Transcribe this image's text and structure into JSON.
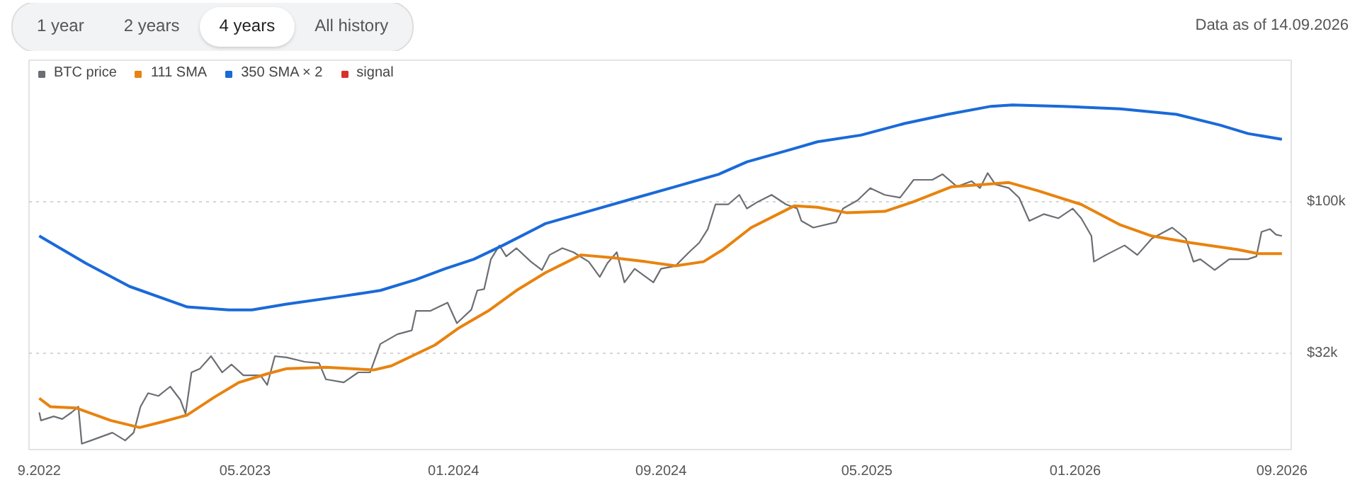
{
  "chart_data": {
    "type": "line",
    "annotations": [
      "1 year",
      "2 years",
      "4 years",
      "All history",
      "Data as of 14.09.2026"
    ],
    "log": true,
    "grid": "y",
    "legend": "top left",
    "marker": "none",
    "line_style": "solid",
    "xlim": [
      "2022-08-20",
      "2026-09-12"
    ],
    "xticks": [
      {
        "value": "2022-09-01",
        "label": "9.2022"
      },
      {
        "value": "2023-05-01",
        "label": "05.2023"
      },
      {
        "value": "2024-01-01",
        "label": "01.2024"
      },
      {
        "value": "2024-09-01",
        "label": "09.2024"
      },
      {
        "value": "2025-05-01",
        "label": "05.2025"
      },
      {
        "value": "2026-01-01",
        "label": "01.2026"
      },
      {
        "value": "2026-09-01",
        "label": "09.2026"
      }
    ],
    "ylim": [
      15500,
      290000
    ],
    "yticks": [
      {
        "value": 32000,
        "label": "$32k"
      },
      {
        "value": 100000,
        "label": "$100k"
      }
    ],
    "series": [
      {
        "name": "BTC price",
        "color": "#6b6e73",
        "x": [
          "2022-09-01",
          "2022-09-03",
          "2022-09-18",
          "2022-09-28",
          "2022-10-09",
          "2022-10-17",
          "2022-10-21",
          "2022-11-01",
          "2022-11-26",
          "2022-12-11",
          "2022-12-21",
          "2022-12-29",
          "2023-01-07",
          "2023-01-19",
          "2023-02-02",
          "2023-02-14",
          "2023-02-20",
          "2023-02-27",
          "2023-03-09",
          "2023-03-22",
          "2023-04-04",
          "2023-04-15",
          "2023-04-29",
          "2023-05-19",
          "2023-05-27",
          "2023-06-05",
          "2023-06-19",
          "2023-07-10",
          "2023-07-27",
          "2023-08-04",
          "2023-08-25",
          "2023-09-11",
          "2023-09-25",
          "2023-10-07",
          "2023-10-27",
          "2023-11-13",
          "2023-11-18",
          "2023-12-05",
          "2023-12-25",
          "2024-01-05",
          "2024-01-22",
          "2024-01-29",
          "2024-02-06",
          "2024-02-14",
          "2024-02-24",
          "2024-03-03",
          "2024-03-15",
          "2024-04-01",
          "2024-04-14",
          "2024-04-23",
          "2024-05-08",
          "2024-05-21",
          "2024-06-08",
          "2024-06-21",
          "2024-06-30",
          "2024-07-11",
          "2024-07-20",
          "2024-08-01",
          "2024-08-23",
          "2024-09-01",
          "2024-09-18",
          "2024-10-04",
          "2024-10-16",
          "2024-10-26",
          "2024-11-04",
          "2024-11-19",
          "2024-12-02",
          "2024-12-11",
          "2024-12-24",
          "2025-01-09",
          "2025-01-26",
          "2025-02-08",
          "2025-02-13",
          "2025-02-27",
          "2025-03-26",
          "2025-04-03",
          "2025-04-20",
          "2025-05-05",
          "2025-05-22",
          "2025-06-09",
          "2025-06-25",
          "2025-07-17",
          "2025-07-29",
          "2025-08-15",
          "2025-09-01",
          "2025-09-11",
          "2025-09-20",
          "2025-09-29",
          "2025-10-15",
          "2025-10-27",
          "2025-11-08",
          "2025-11-25",
          "2025-12-12",
          "2025-12-29",
          "2026-01-08",
          "2026-01-20",
          "2026-01-23",
          "2026-02-06",
          "2026-02-28",
          "2026-03-15",
          "2026-04-01",
          "2026-04-25",
          "2026-05-11",
          "2026-05-20",
          "2026-05-28",
          "2026-06-14",
          "2026-07-01",
          "2026-07-23",
          "2026-08-02",
          "2026-08-08",
          "2026-08-18",
          "2026-08-25",
          "2026-09-01"
        ],
        "values": [
          20500,
          19300,
          19900,
          19500,
          20500,
          21400,
          16200,
          16600,
          17600,
          16600,
          17600,
          21400,
          23700,
          23200,
          24900,
          22500,
          20300,
          27700,
          28500,
          31300,
          27700,
          29400,
          27100,
          27100,
          25200,
          31300,
          31000,
          30000,
          29700,
          26300,
          25700,
          27700,
          27700,
          34300,
          36900,
          38000,
          44000,
          44000,
          46800,
          40100,
          44400,
          51300,
          51800,
          64900,
          72000,
          66300,
          70500,
          63700,
          59800,
          67000,
          70500,
          68400,
          63700,
          56800,
          63000,
          68400,
          54500,
          60400,
          54500,
          60400,
          61700,
          68400,
          73500,
          81400,
          98000,
          98000,
          105300,
          95000,
          100000,
          105300,
          98000,
          95000,
          86600,
          82300,
          85700,
          95000,
          101000,
          110800,
          105300,
          103100,
          117900,
          117900,
          123000,
          112000,
          116700,
          110800,
          124100,
          114000,
          110800,
          103100,
          86600,
          91100,
          88300,
          95000,
          88300,
          77300,
          63700,
          67000,
          72000,
          67000,
          75800,
          82300,
          75800,
          63700,
          64900,
          59800,
          64900,
          64900,
          66300,
          79700,
          81400,
          78100,
          77300
        ]
      },
      {
        "name": "111 SMA",
        "color": "#e8830f",
        "x": [
          "2022-09-01",
          "2022-09-14",
          "2022-10-14",
          "2022-11-24",
          "2022-12-28",
          "2023-01-24",
          "2023-02-22",
          "2023-03-26",
          "2023-04-24",
          "2023-05-27",
          "2023-06-19",
          "2023-08-04",
          "2023-09-29",
          "2023-10-20",
          "2023-11-13",
          "2023-12-10",
          "2024-01-08",
          "2024-02-11",
          "2024-03-15",
          "2024-04-18",
          "2024-05-30",
          "2024-07-06",
          "2024-08-14",
          "2024-09-18",
          "2024-10-21",
          "2024-11-13",
          "2024-12-16",
          "2025-02-05",
          "2025-03-04",
          "2025-04-07",
          "2025-05-22",
          "2025-06-25",
          "2025-08-09",
          "2025-09-19",
          "2025-10-15",
          "2025-11-18",
          "2026-01-08",
          "2026-02-23",
          "2026-04-01",
          "2026-05-16",
          "2026-07-11",
          "2026-08-04",
          "2026-09-01"
        ],
        "values": [
          22800,
          21400,
          21200,
          19300,
          18300,
          19100,
          20100,
          23000,
          25700,
          27400,
          28500,
          28800,
          28200,
          29100,
          31300,
          34000,
          38800,
          44000,
          51300,
          58600,
          67000,
          65600,
          63700,
          61700,
          63700,
          69800,
          82300,
          97000,
          95900,
          92100,
          93000,
          100000,
          112000,
          114000,
          115500,
          108600,
          98000,
          84000,
          77300,
          73500,
          69800,
          67700,
          67700
        ]
      },
      {
        "name": "350 SMA × 2",
        "color": "#1a6ad8",
        "x": [
          "2022-09-01",
          "2022-10-26",
          "2022-12-16",
          "2023-02-22",
          "2023-04-12",
          "2023-05-09",
          "2023-06-19",
          "2023-08-25",
          "2023-10-07",
          "2023-11-18",
          "2023-12-22",
          "2024-01-25",
          "2024-02-28",
          "2024-04-18",
          "2024-06-08",
          "2024-07-28",
          "2024-09-18",
          "2024-11-08",
          "2024-12-11",
          "2025-01-31",
          "2025-03-04",
          "2025-04-24",
          "2025-06-14",
          "2025-08-04",
          "2025-09-24",
          "2025-10-19",
          "2025-12-17",
          "2026-02-23",
          "2026-04-30",
          "2026-06-20",
          "2026-07-23",
          "2026-09-01"
        ],
        "values": [
          77300,
          62900,
          52900,
          45300,
          44300,
          44300,
          46300,
          49200,
          51300,
          55700,
          60400,
          64900,
          72000,
          84800,
          93100,
          102000,
          112000,
          123000,
          135000,
          148000,
          157000,
          165000,
          180000,
          193000,
          205000,
          207000,
          205000,
          201000,
          193000,
          178000,
          167000,
          160000
        ]
      },
      {
        "name": "signal",
        "color": "#d9302c"
      }
    ]
  }
}
